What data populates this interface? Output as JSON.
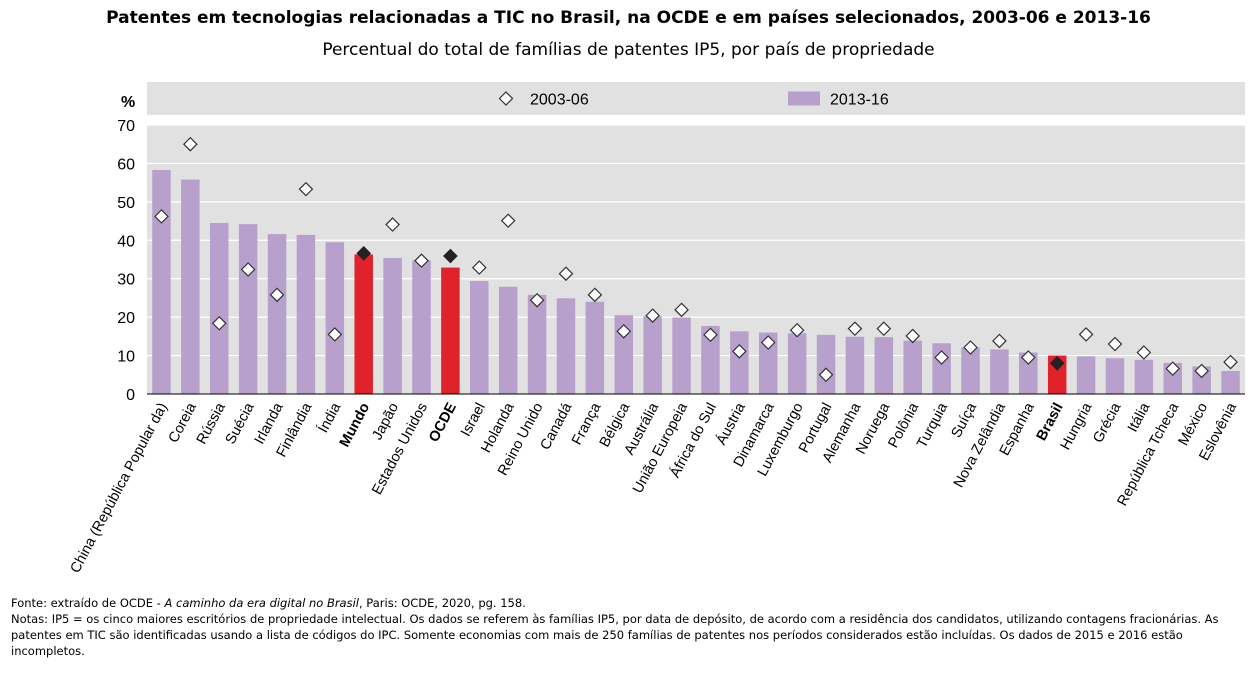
{
  "title": "Patentes em tecnologias relacionadas a TIC no Brasil, na OCDE e em países selecionados, 2003-06  e 2013-16",
  "subtitle": "Percentual do total de famílias de patentes IP5, por país de propriedade",
  "chart_data": {
    "type": "bar",
    "ylabel": "%",
    "ylim": [
      0,
      70
    ],
    "yticks": [
      0,
      10,
      20,
      30,
      40,
      50,
      60,
      70
    ],
    "grid": true,
    "legend_position": "top",
    "categories": [
      "China (República Popular da)",
      "Coreia",
      "Rússia",
      "Suécia",
      "Irlanda",
      "Finlândia",
      "Índia",
      "Mundo",
      "Japão",
      "Estados Unidos",
      "OCDE",
      "Israel",
      "Holanda",
      "Reino Unido",
      "Canadá",
      "França",
      "Bélgica",
      "Austrália",
      "União Europeia",
      "África do Sul",
      "Áustria",
      "Dinamarca",
      "Luxemburgo",
      "Portugal",
      "Alemanha",
      "Noruega",
      "Polônia",
      "Turquia",
      "Suíça",
      "Nova Zelândia",
      "Espanha",
      "Brasil",
      "Hungria",
      "Grécia",
      "Itália",
      "República Tcheca",
      "México",
      "Eslovênia"
    ],
    "highlighted": [
      "Mundo",
      "OCDE",
      "Brasil"
    ],
    "series": [
      {
        "name": "2013-16",
        "marker": "bar",
        "values": [
          58.3,
          55.8,
          44.5,
          44.2,
          41.6,
          41.4,
          39.5,
          36.3,
          35.4,
          34.8,
          32.9,
          29.4,
          27.9,
          25.8,
          24.9,
          24.0,
          20.5,
          20.2,
          19.9,
          17.7,
          16.3,
          16.0,
          15.8,
          15.4,
          14.9,
          14.8,
          13.9,
          13.2,
          12.1,
          11.6,
          10.8,
          10.0,
          9.8,
          9.3,
          8.9,
          8.1,
          7.2,
          6.0
        ],
        "color": "#b7a0cc",
        "highlight_color": "#e0222a"
      },
      {
        "name": "2003-06",
        "marker": "diamond",
        "values": [
          46.2,
          65.0,
          18.4,
          32.4,
          25.8,
          53.3,
          15.5,
          36.6,
          44.1,
          34.7,
          35.9,
          32.9,
          45.1,
          24.4,
          31.3,
          25.8,
          16.3,
          20.4,
          21.9,
          15.4,
          11.1,
          13.4,
          16.6,
          5.0,
          17.0,
          17.0,
          15.1,
          9.5,
          12.1,
          13.8,
          9.5,
          8.0,
          15.5,
          13.0,
          10.8,
          6.6,
          6.0,
          8.3
        ],
        "color": "#ffffff",
        "highlight_color": "#222222"
      }
    ]
  },
  "source": {
    "prefix": "Fonte: extraído de OCDE - ",
    "book": "A caminho da era digital no Brasil",
    "suffix": ", Paris: OCDE, 2020,  pg. 158.",
    "notes": "Notas: IP5 = os cinco maiores escritórios de propriedade intelectual. Os dados se referem às famílias IP5, por data de depósito, de acordo com a residência dos candidatos, utilizando contagens fracionárias. As patentes em TIC são identificadas usando a lista de códigos do IPC. Somente economias com mais de 250  famílias de patentes nos períodos considerados estão incluídas. Os dados de 2015  e 2016  estão incompletos."
  }
}
